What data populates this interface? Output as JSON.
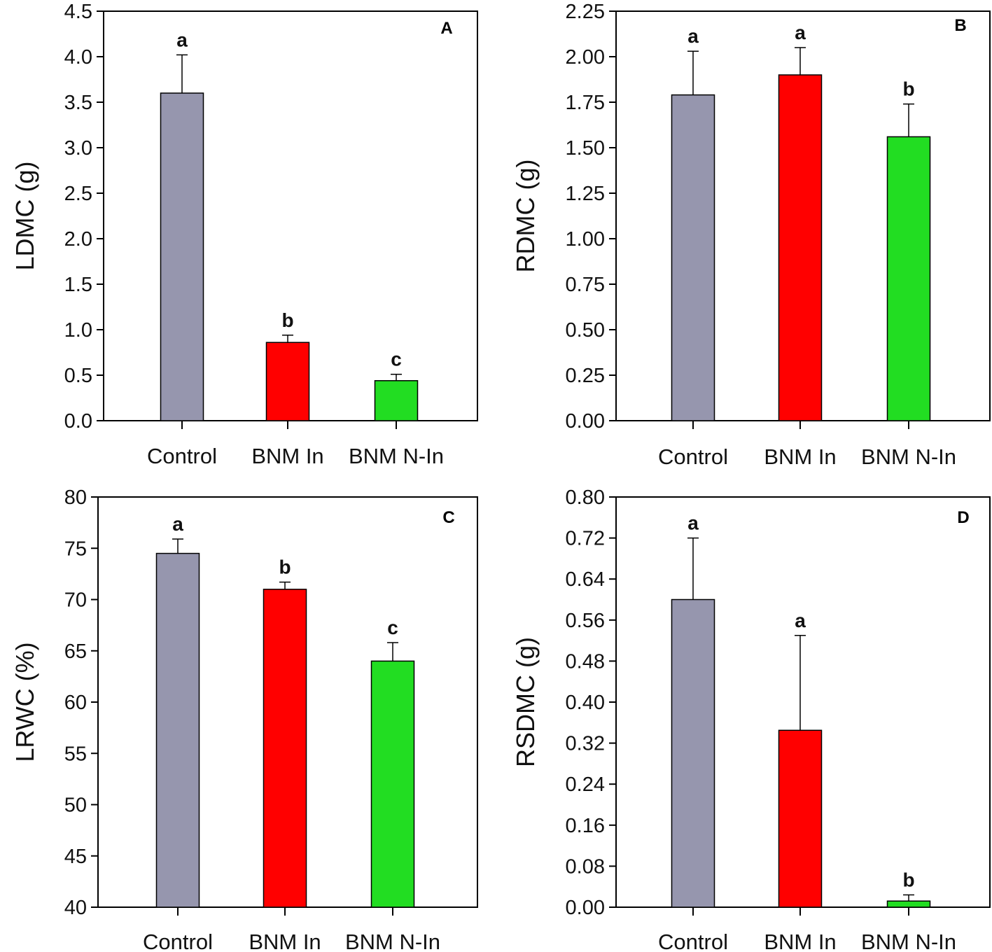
{
  "chart_data": [
    {
      "type": "bar",
      "panel": "A",
      "ylabel": "LDMC (g)",
      "categories": [
        "Control",
        "BNM In",
        "BNM N-In"
      ],
      "values": [
        3.6,
        0.86,
        0.44
      ],
      "errors": [
        0.42,
        0.08,
        0.07
      ],
      "letters": [
        "a",
        "b",
        "c"
      ],
      "colors": [
        "#9696ae",
        "#ff0000",
        "#22dd22"
      ],
      "ylim": [
        0,
        4.5
      ],
      "ticks": [
        "0.0",
        "0.5",
        "1.0",
        "1.5",
        "2.0",
        "2.5",
        "3.0",
        "3.5",
        "4.0",
        "4.5"
      ]
    },
    {
      "type": "bar",
      "panel": "B",
      "ylabel": "RDMC (g)",
      "categories": [
        "Control",
        "BNM In",
        "BNM N-In"
      ],
      "values": [
        1.79,
        1.9,
        1.56
      ],
      "errors": [
        0.24,
        0.15,
        0.18
      ],
      "letters": [
        "a",
        "a",
        "b"
      ],
      "colors": [
        "#9696ae",
        "#ff0000",
        "#22dd22"
      ],
      "ylim": [
        0,
        2.25
      ],
      "ticks": [
        "0.00",
        "0.25",
        "0.50",
        "0.75",
        "1.00",
        "1.25",
        "1.50",
        "1.75",
        "2.00",
        "2.25"
      ]
    },
    {
      "type": "bar",
      "panel": "C",
      "ylabel": "LRWC (%)",
      "categories": [
        "Control",
        "BNM In",
        "BNM N-In"
      ],
      "values": [
        74.5,
        71.0,
        64.0
      ],
      "errors": [
        1.4,
        0.7,
        1.8
      ],
      "letters": [
        "a",
        "b",
        "c"
      ],
      "colors": [
        "#9696ae",
        "#ff0000",
        "#22dd22"
      ],
      "ylim": [
        40,
        80
      ],
      "ticks": [
        "40",
        "45",
        "50",
        "55",
        "60",
        "65",
        "70",
        "75",
        "80"
      ]
    },
    {
      "type": "bar",
      "panel": "D",
      "ylabel": "RSDMC (g)",
      "categories": [
        "Control",
        "BNM In",
        "BNM N-In"
      ],
      "values": [
        0.6,
        0.345,
        0.012
      ],
      "errors": [
        0.12,
        0.185,
        0.012
      ],
      "letters": [
        "a",
        "a",
        "b"
      ],
      "colors": [
        "#9696ae",
        "#ff0000",
        "#22dd22"
      ],
      "ylim": [
        0,
        0.8
      ],
      "ticks": [
        "0.00",
        "0.08",
        "0.16",
        "0.24",
        "0.32",
        "0.40",
        "0.48",
        "0.56",
        "0.64",
        "0.72",
        "0.80"
      ]
    }
  ]
}
